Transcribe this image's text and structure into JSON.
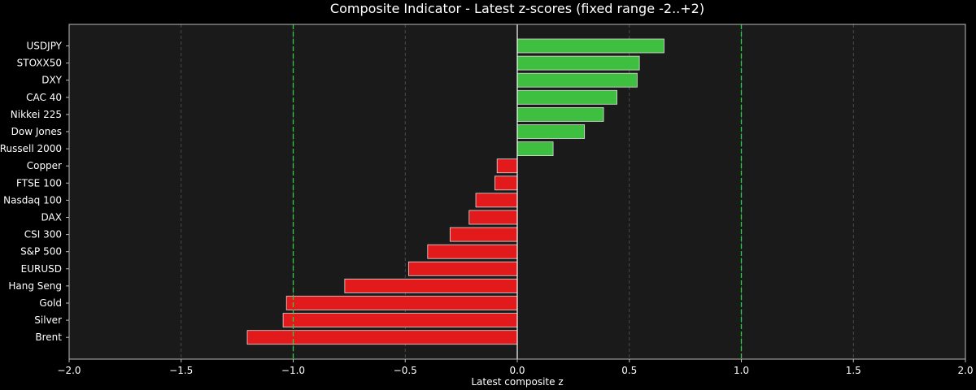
{
  "chart_data": {
    "type": "bar",
    "orientation": "horizontal",
    "title": "Composite Indicator - Latest z-scores (fixed range -2..+2)",
    "xlabel": "Latest composite z",
    "ylabel": "",
    "xlim": [
      -2.0,
      2.0
    ],
    "xticks": [
      "−2.0",
      "−1.5",
      "−1.0",
      "−0.5",
      "0.0",
      "0.5",
      "1.0",
      "1.5",
      "2.0"
    ],
    "grid": true,
    "reference_lines": [
      -1.0,
      1.0
    ],
    "categories": [
      "USDJPY",
      "STOXX50",
      "DXY",
      "CAC 40",
      "Nikkei 225",
      "Dow Jones",
      "Russell 2000",
      "Copper",
      "FTSE 100",
      "Nasdaq 100",
      "DAX",
      "CSI 300",
      "S&P 500",
      "EURUSD",
      "Hang Seng",
      "Gold",
      "Silver",
      "Brent"
    ],
    "values": [
      0.655,
      0.545,
      0.535,
      0.445,
      0.385,
      0.3,
      0.16,
      -0.09,
      -0.1,
      -0.185,
      -0.215,
      -0.3,
      -0.4,
      -0.485,
      -0.77,
      -1.03,
      -1.045,
      -1.205
    ],
    "colors": {
      "positive": "#3fbf3f",
      "negative": "#e31a1c",
      "reference": "#2ecc40",
      "background": "#1a1a1a",
      "figure": "#000000"
    }
  }
}
